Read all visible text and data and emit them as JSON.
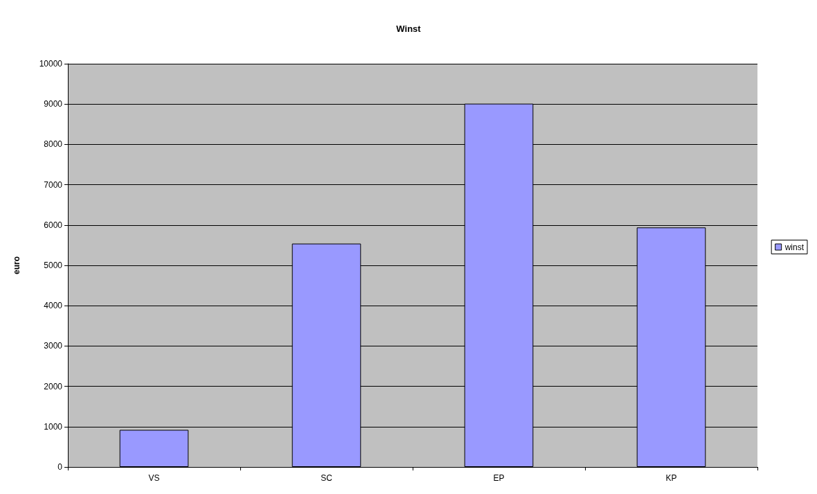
{
  "chart_data": {
    "type": "bar",
    "title": "Winst",
    "ylabel": "euro",
    "categories": [
      "VS",
      "SC",
      "EP",
      "KP"
    ],
    "series": [
      {
        "name": "winst",
        "color": "#9999ff",
        "values": [
          920,
          5540,
          9010,
          5940
        ]
      }
    ],
    "ylim": [
      0,
      10000
    ],
    "yticks": [
      0,
      1000,
      2000,
      3000,
      4000,
      5000,
      6000,
      7000,
      8000,
      9000,
      10000
    ],
    "grid": "y",
    "legend": "right"
  }
}
